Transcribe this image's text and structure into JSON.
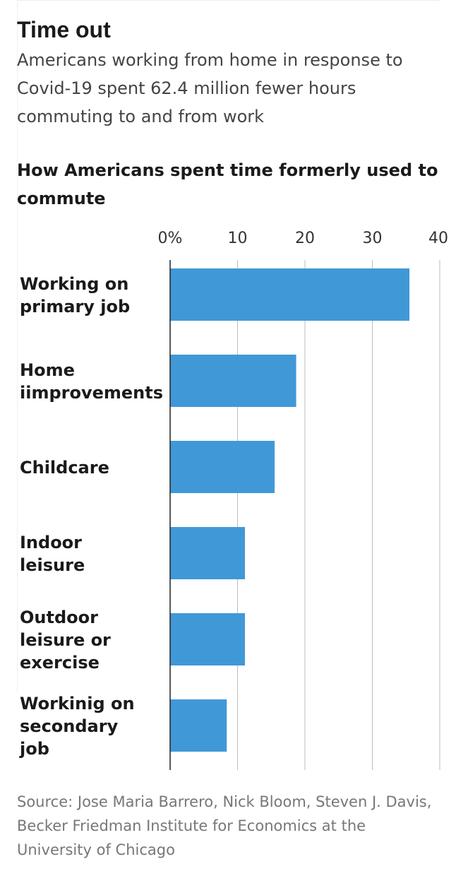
{
  "header": {
    "title": "Time out",
    "subtitle": "Americans working from home in response to Covid-19 spent 62.4 million fewer hours commuting to and from work",
    "chart_heading": "How Americans spent time formerly used to commute"
  },
  "footer": {
    "source": "Source: Jose Maria Barrero, Nick Bloom, Steven J. Davis, Becker Friedman Institute for Economics at the University of Chicago"
  },
  "colors": {
    "bar": "#4198d7",
    "grid": "#bbbbbb",
    "axis": "#222222"
  },
  "chart_data": {
    "type": "bar",
    "orientation": "horizontal",
    "categories": [
      [
        "Working on",
        "primary job"
      ],
      [
        "Home",
        "iimprovements"
      ],
      [
        "Childcare"
      ],
      [
        "Indoor",
        "leisure"
      ],
      [
        "Outdoor",
        "leisure or",
        "exercise"
      ],
      [
        "Workinig on",
        "secondary",
        "job"
      ]
    ],
    "values": [
      35.5,
      18.7,
      15.5,
      11.1,
      11.1,
      8.4
    ],
    "xlim": [
      0,
      40
    ],
    "ticks": [
      0,
      10,
      20,
      30,
      40
    ],
    "tick_labels": [
      "0%",
      "10",
      "20",
      "30",
      "40"
    ],
    "grid": true
  }
}
